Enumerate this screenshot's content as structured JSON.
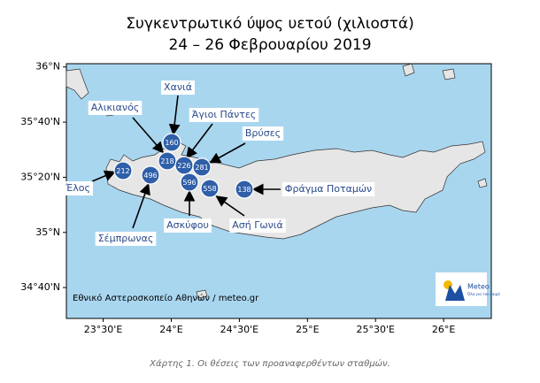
{
  "title": "Συγκεντρωτικό ύψος υετού (χιλιοστά)",
  "subtitle": "24 – 26 Φεβρουαρίου 2019",
  "map": {
    "xlim": [
      23.23,
      26.35
    ],
    "ylim": [
      34.48,
      36.02
    ],
    "xticks": [
      {
        "value": 23.5,
        "label": "23°30'E"
      },
      {
        "value": 24,
        "label": "24°E"
      },
      {
        "value": 24.5,
        "label": "24°30'E"
      },
      {
        "value": 25,
        "label": "25°E"
      },
      {
        "value": 25.5,
        "label": "25°30'E"
      },
      {
        "value": 26,
        "label": "26°E"
      }
    ],
    "yticks": [
      {
        "value": 36,
        "label": "36°N"
      },
      {
        "value": 35.6667,
        "label": "35°40'N"
      },
      {
        "value": 35.3333,
        "label": "35°20'N"
      },
      {
        "value": 35,
        "label": "35°N"
      },
      {
        "value": 34.6667,
        "label": "34°40'N"
      }
    ]
  },
  "stations": [
    {
      "name": "Χανιά",
      "value": "160"
    },
    {
      "name": "Αλικιανός",
      "value": "218"
    },
    {
      "name": "Άγιοι Πάντες",
      "value": "226"
    },
    {
      "name": "Βρύσες",
      "value": "281"
    },
    {
      "name": "Έλος",
      "value": "212"
    },
    {
      "name": "Σέμπρωνας",
      "value": "496"
    },
    {
      "name": "Ασκύφου",
      "value": "596"
    },
    {
      "name": "Ασή Γωνιά",
      "value": "558"
    },
    {
      "name": "Φράγμα Ποταμών",
      "value": "138"
    }
  ],
  "credit": "Εθνικό Αστεροσκοπείο Αθηνών / meteo.gr",
  "logo": {
    "name": "Meteo",
    "tagline": "Όλα για τον καιρό"
  },
  "caption": "Χάρτης 1. Οι θέσεις των προαναφερθέντων σταθμών."
}
